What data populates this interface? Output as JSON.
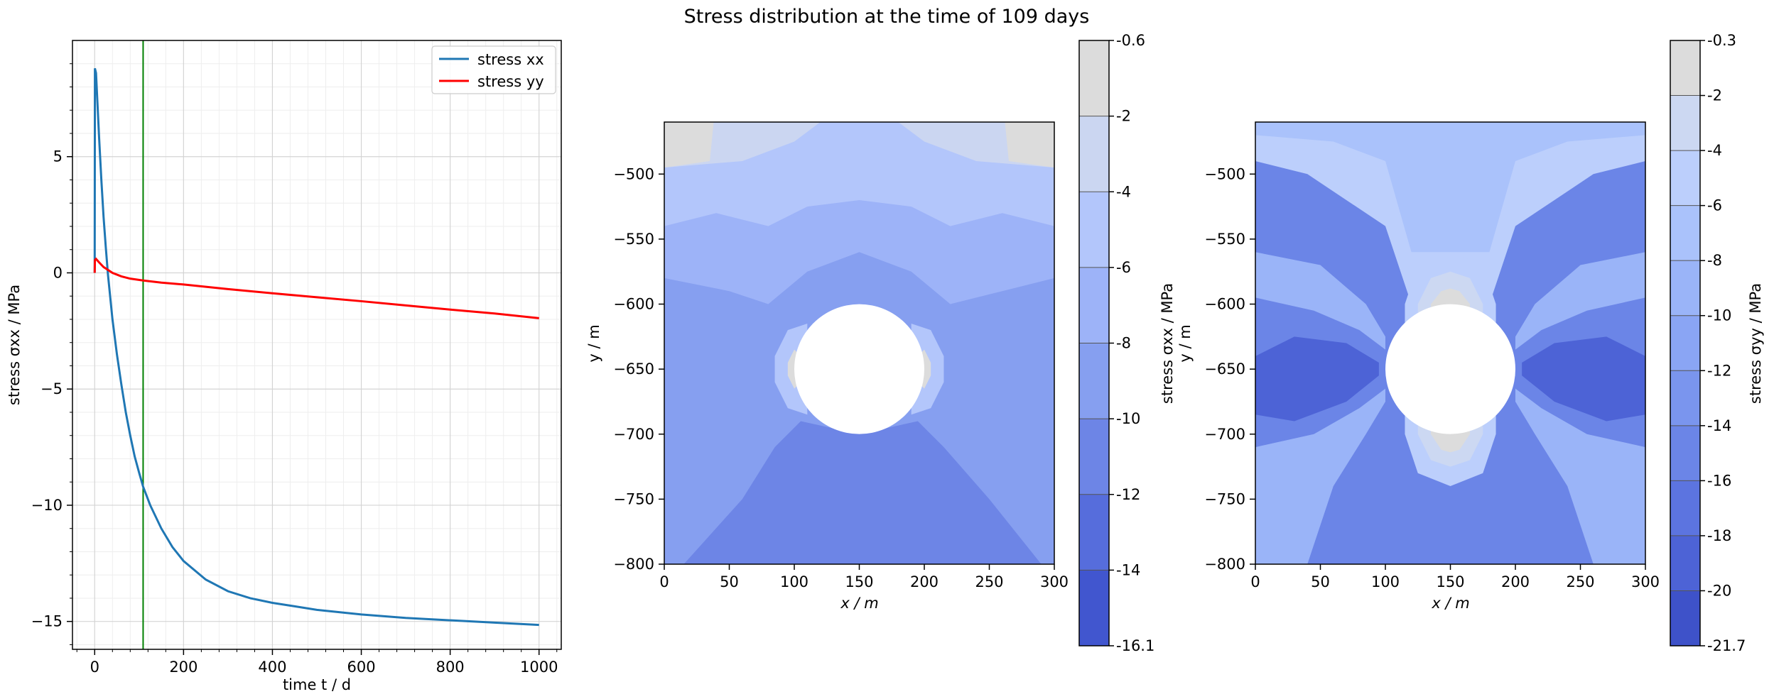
{
  "figure": {
    "title": "Stress distribution at the time of 109 days"
  },
  "chart_data": [
    {
      "type": "line",
      "title": "",
      "xlabel": "time t / d",
      "ylabel": "stress σxx / MPa",
      "xlim": [
        -50,
        1050
      ],
      "ylim": [
        -16.2,
        10
      ],
      "xticks": [
        0,
        200,
        400,
        600,
        800,
        1000
      ],
      "yticks": [
        -15,
        -10,
        -5,
        0,
        5
      ],
      "xtick_labels": [
        "0",
        "200",
        "400",
        "600",
        "800",
        "1000"
      ],
      "ytick_labels": [
        "−15",
        "−10",
        "−5",
        "0",
        "5"
      ],
      "grid": true,
      "legend": "top-right",
      "vline": {
        "x": 109,
        "color": "#008000"
      },
      "series": [
        {
          "name": "stress xx",
          "color": "#1f77b4",
          "x": [
            0,
            0.5,
            3,
            6,
            10,
            15,
            20,
            25,
            30,
            40,
            50,
            60,
            70,
            80,
            90,
            100,
            109,
            125,
            150,
            175,
            200,
            250,
            300,
            350,
            400,
            450,
            500,
            600,
            700,
            800,
            900,
            1000
          ],
          "y": [
            0,
            8.8,
            8.6,
            7.4,
            5.8,
            4.0,
            2.4,
            1.1,
            -0.1,
            -2.0,
            -3.5,
            -4.8,
            -6.0,
            -7.0,
            -7.9,
            -8.6,
            -9.2,
            -10.0,
            -11.0,
            -11.8,
            -12.4,
            -13.2,
            -13.7,
            -14.0,
            -14.2,
            -14.35,
            -14.5,
            -14.7,
            -14.85,
            -14.95,
            -15.05,
            -15.15
          ]
        },
        {
          "name": "stress yy",
          "color": "#ff0000",
          "x": [
            0,
            0.5,
            3,
            10,
            20,
            40,
            60,
            80,
            109,
            150,
            200,
            300,
            400,
            500,
            600,
            700,
            800,
            900,
            1000
          ],
          "y": [
            0,
            0.55,
            0.6,
            0.45,
            0.25,
            0.0,
            -0.15,
            -0.25,
            -0.33,
            -0.42,
            -0.5,
            -0.7,
            -0.88,
            -1.05,
            -1.22,
            -1.4,
            -1.58,
            -1.75,
            -1.95
          ]
        }
      ]
    },
    {
      "type": "heatmap",
      "title": "",
      "xlabel": "x / m",
      "ylabel": "y / m",
      "xlim": [
        0,
        300
      ],
      "ylim": [
        -800,
        -460
      ],
      "xticks": [
        0,
        50,
        100,
        150,
        200,
        250,
        300
      ],
      "yticks": [
        -800,
        -750,
        -700,
        -650,
        -600,
        -550,
        -500
      ],
      "xtick_labels": [
        "0",
        "50",
        "100",
        "150",
        "200",
        "250",
        "300"
      ],
      "ytick_labels": [
        "−800",
        "−750",
        "−700",
        "−650",
        "−600",
        "−550",
        "−500"
      ],
      "hole": {
        "cx": 150,
        "cy": -650,
        "r": 50
      },
      "colorbar": {
        "label": "stress σxx / MPa",
        "levels": [
          -16.1,
          -14,
          -12,
          -10,
          -8,
          -6,
          -4,
          -2,
          -0.6
        ],
        "level_labels": [
          "-16.1",
          "-14",
          "-12",
          "-10",
          "-8",
          "-6",
          "-4",
          "-2",
          "-0.6"
        ],
        "colors": [
          "#4156cf",
          "#566ddc",
          "#6d85e6",
          "#869ff0",
          "#9db3f8",
          "#b3c6fb",
          "#cbd6f1",
          "#dcdcdc"
        ]
      },
      "contour_bands": [
        {
          "level_index": 1,
          "points": [
            [
              70,
              -800
            ],
            [
              100,
              -760
            ],
            [
              150,
              -745
            ],
            [
              200,
              -760
            ],
            [
              235,
              -800
            ]
          ]
        },
        {
          "level_index": 2,
          "points": [
            [
              15,
              -800
            ],
            [
              60,
              -750
            ],
            [
              85,
              -710
            ],
            [
              105,
              -690
            ],
            [
              150,
              -700
            ],
            [
              195,
              -690
            ],
            [
              215,
              -710
            ],
            [
              250,
              -750
            ],
            [
              290,
              -800
            ]
          ]
        },
        {
          "level_index": 4,
          "points": [
            [
              0,
              -580
            ],
            [
              50,
              -590
            ],
            [
              80,
              -600
            ],
            [
              110,
              -575
            ],
            [
              150,
              -560
            ],
            [
              190,
              -575
            ],
            [
              220,
              -600
            ],
            [
              260,
              -590
            ],
            [
              300,
              -580
            ],
            [
              300,
              -460
            ],
            [
              0,
              -460
            ]
          ]
        },
        {
          "level_index": 5,
          "points": [
            [
              0,
              -540
            ],
            [
              40,
              -530
            ],
            [
              80,
              -540
            ],
            [
              110,
              -525
            ],
            [
              150,
              -520
            ],
            [
              190,
              -525
            ],
            [
              220,
              -540
            ],
            [
              260,
              -530
            ],
            [
              300,
              -540
            ],
            [
              300,
              -460
            ],
            [
              0,
              -460
            ]
          ]
        },
        {
          "level_index": 6,
          "points": [
            [
              0,
              -495
            ],
            [
              60,
              -490
            ],
            [
              100,
              -475
            ],
            [
              120,
              -460
            ],
            [
              180,
              -460
            ],
            [
              200,
              -475
            ],
            [
              240,
              -490
            ],
            [
              300,
              -495
            ],
            [
              300,
              -460
            ],
            [
              0,
              -460
            ]
          ]
        },
        {
          "level_index": 7,
          "points": [
            [
              0,
              -460
            ],
            [
              38,
              -460
            ],
            [
              35,
              -490
            ],
            [
              0,
              -495
            ]
          ]
        },
        {
          "level_index": 7,
          "points": [
            [
              300,
              -460
            ],
            [
              262,
              -460
            ],
            [
              265,
              -490
            ],
            [
              300,
              -495
            ]
          ]
        },
        {
          "level_index": 5,
          "points": [
            [
              85,
              -640
            ],
            [
              95,
              -620
            ],
            [
              110,
              -615
            ],
            [
              110,
              -685
            ],
            [
              95,
              -680
            ],
            [
              85,
              -660
            ]
          ]
        },
        {
          "level_index": 5,
          "points": [
            [
              215,
              -640
            ],
            [
              205,
              -620
            ],
            [
              190,
              -615
            ],
            [
              190,
              -685
            ],
            [
              205,
              -680
            ],
            [
              215,
              -660
            ]
          ]
        },
        {
          "level_index": 7,
          "points": [
            [
              95,
              -645
            ],
            [
              100,
              -635
            ],
            [
              105,
              -640
            ],
            [
              105,
              -660
            ],
            [
              100,
              -665
            ],
            [
              95,
              -655
            ]
          ]
        },
        {
          "level_index": 7,
          "points": [
            [
              205,
              -645
            ],
            [
              200,
              -635
            ],
            [
              195,
              -640
            ],
            [
              195,
              -660
            ],
            [
              200,
              -665
            ],
            [
              205,
              -655
            ]
          ]
        }
      ]
    },
    {
      "type": "heatmap",
      "title": "",
      "xlabel": "x / m",
      "ylabel": "y / m",
      "xlim": [
        0,
        300
      ],
      "ylim": [
        -800,
        -460
      ],
      "xticks": [
        0,
        50,
        100,
        150,
        200,
        250,
        300
      ],
      "yticks": [
        -800,
        -750,
        -700,
        -650,
        -600,
        -550,
        -500
      ],
      "xtick_labels": [
        "0",
        "50",
        "100",
        "150",
        "200",
        "250",
        "300"
      ],
      "ytick_labels": [
        "−800",
        "−750",
        "−700",
        "−650",
        "−600",
        "−550",
        "−500"
      ],
      "hole": {
        "cx": 150,
        "cy": -650,
        "r": 50
      },
      "colorbar": {
        "label": "stress σyy / MPa",
        "levels": [
          -21.7,
          -20,
          -18,
          -16,
          -14,
          -12,
          -10,
          -8,
          -6,
          -4,
          -2,
          -0.3
        ],
        "level_labels": [
          "-21.7",
          "-20",
          "-18",
          "-16",
          "-14",
          "-12",
          "-10",
          "-8",
          "-6",
          "-4",
          "-2",
          "-0.3"
        ],
        "colors": [
          "#3e52c9",
          "#4d63d6",
          "#5c74e0",
          "#6b85e7",
          "#7a95ee",
          "#8aa5f4",
          "#9ab4f8",
          "#aac2fb",
          "#bccffc",
          "#ccd8f2",
          "#dcdcdc"
        ]
      },
      "contour_bands": [
        {
          "level_index": 8,
          "points": [
            [
              0,
              -460
            ],
            [
              300,
              -460
            ],
            [
              300,
              -490
            ],
            [
              260,
              -500
            ],
            [
              230,
              -520
            ],
            [
              200,
              -540
            ],
            [
              180,
              -600
            ],
            [
              120,
              -600
            ],
            [
              100,
              -540
            ],
            [
              70,
              -520
            ],
            [
              40,
              -500
            ],
            [
              0,
              -490
            ]
          ]
        },
        {
          "level_index": 7,
          "points": [
            [
              0,
              -460
            ],
            [
              300,
              -460
            ],
            [
              300,
              -470
            ],
            [
              240,
              -475
            ],
            [
              200,
              -490
            ],
            [
              180,
              -560
            ],
            [
              120,
              -560
            ],
            [
              100,
              -490
            ],
            [
              60,
              -475
            ],
            [
              0,
              -470
            ]
          ]
        },
        {
          "level_index": 6,
          "points": [
            [
              0,
              -560
            ],
            [
              50,
              -570
            ],
            [
              85,
              -600
            ],
            [
              100,
              -625
            ],
            [
              100,
              -675
            ],
            [
              85,
              -700
            ],
            [
              60,
              -740
            ],
            [
              40,
              -800
            ],
            [
              0,
              -800
            ]
          ]
        },
        {
          "level_index": 6,
          "points": [
            [
              300,
              -560
            ],
            [
              250,
              -570
            ],
            [
              215,
              -600
            ],
            [
              200,
              -625
            ],
            [
              200,
              -675
            ],
            [
              215,
              -700
            ],
            [
              240,
              -740
            ],
            [
              260,
              -800
            ],
            [
              300,
              -800
            ]
          ]
        },
        {
          "level_index": 3,
          "points": [
            [
              0,
              -595
            ],
            [
              45,
              -605
            ],
            [
              80,
              -620
            ],
            [
              100,
              -635
            ],
            [
              100,
              -665
            ],
            [
              80,
              -680
            ],
            [
              45,
              -700
            ],
            [
              0,
              -710
            ]
          ]
        },
        {
          "level_index": 3,
          "points": [
            [
              300,
              -595
            ],
            [
              255,
              -605
            ],
            [
              220,
              -620
            ],
            [
              200,
              -635
            ],
            [
              200,
              -665
            ],
            [
              220,
              -680
            ],
            [
              255,
              -700
            ],
            [
              300,
              -710
            ]
          ]
        },
        {
          "level_index": 1,
          "points": [
            [
              0,
              -640
            ],
            [
              30,
              -625
            ],
            [
              70,
              -630
            ],
            [
              95,
              -645
            ],
            [
              95,
              -655
            ],
            [
              70,
              -675
            ],
            [
              30,
              -690
            ],
            [
              0,
              -685
            ]
          ]
        },
        {
          "level_index": 1,
          "points": [
            [
              300,
              -640
            ],
            [
              270,
              -625
            ],
            [
              230,
              -630
            ],
            [
              205,
              -645
            ],
            [
              205,
              -655
            ],
            [
              230,
              -675
            ],
            [
              270,
              -690
            ],
            [
              300,
              -685
            ]
          ]
        },
        {
          "level_index": 8,
          "points": [
            [
              115,
              -600
            ],
            [
              125,
              -570
            ],
            [
              150,
              -560
            ],
            [
              175,
              -570
            ],
            [
              185,
              -600
            ],
            [
              185,
              -700
            ],
            [
              175,
              -730
            ],
            [
              150,
              -740
            ],
            [
              125,
              -730
            ],
            [
              115,
              -700
            ]
          ]
        },
        {
          "level_index": 9,
          "points": [
            [
              125,
              -600
            ],
            [
              135,
              -580
            ],
            [
              150,
              -575
            ],
            [
              165,
              -580
            ],
            [
              175,
              -600
            ],
            [
              175,
              -700
            ],
            [
              165,
              -720
            ],
            [
              150,
              -725
            ],
            [
              135,
              -720
            ],
            [
              125,
              -700
            ]
          ]
        },
        {
          "level_index": 10,
          "points": [
            [
              135,
              -600
            ],
            [
              143,
              -590
            ],
            [
              150,
              -588
            ],
            [
              157,
              -590
            ],
            [
              165,
              -600
            ],
            [
              165,
              -700
            ],
            [
              157,
              -712
            ],
            [
              150,
              -714
            ],
            [
              143,
              -712
            ],
            [
              135,
              -700
            ]
          ]
        }
      ]
    }
  ]
}
